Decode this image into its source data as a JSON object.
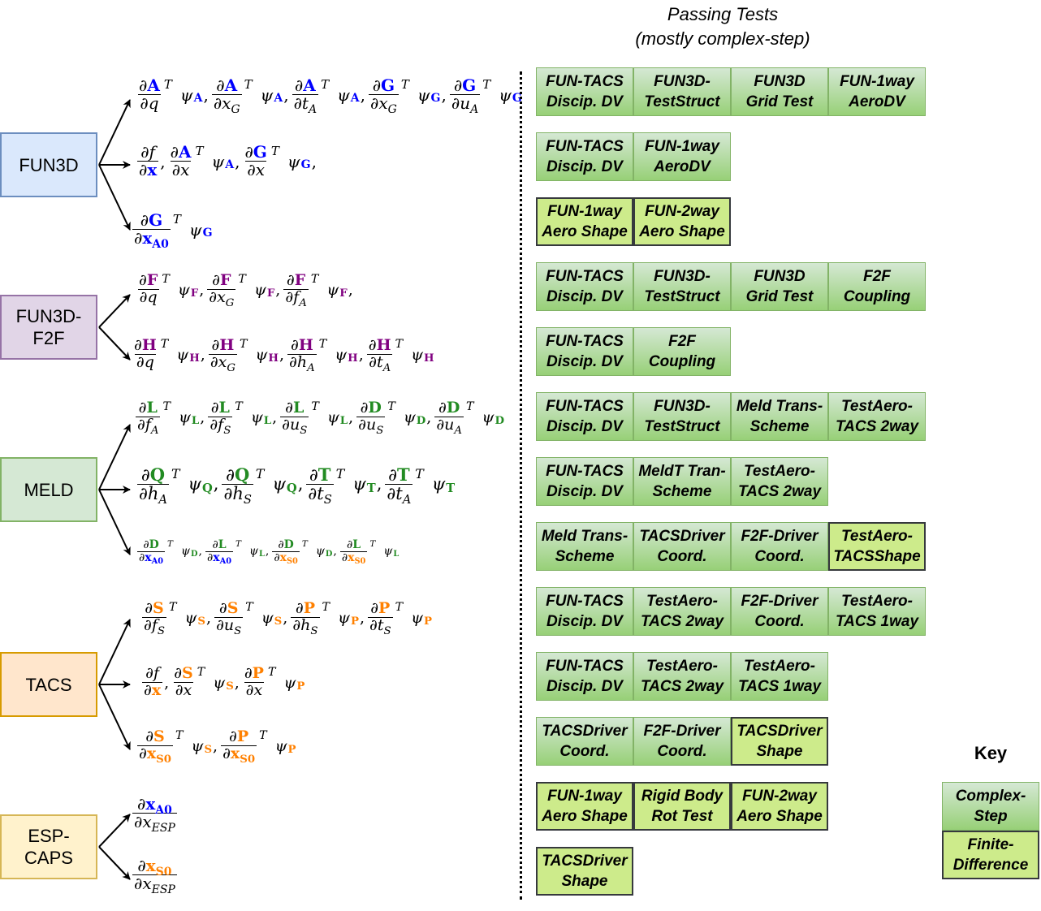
{
  "colors": {
    "blue": "#0000ff",
    "purple": "#800080",
    "green": "#228b22",
    "orange": "#ff8000"
  },
  "heading": {
    "line1": "Passing Tests",
    "line2": "(mostly complex-step)"
  },
  "modules": [
    {
      "id": "fun3d",
      "lines": [
        "FUN3D"
      ],
      "fill": "#dae8fc",
      "stroke": "#6c8ebf"
    },
    {
      "id": "fun3d-f2f",
      "lines": [
        "FUN3D-",
        "F2F"
      ],
      "fill": "#e1d5e7",
      "stroke": "#9673a6"
    },
    {
      "id": "meld",
      "lines": [
        "MELD"
      ],
      "fill": "#d5e8d4",
      "stroke": "#82b366"
    },
    {
      "id": "tacs",
      "lines": [
        "TACS"
      ],
      "fill": "#ffe6cc",
      "stroke": "#d79b00"
    },
    {
      "id": "esp-caps",
      "lines": [
        "ESP-",
        "CAPS"
      ],
      "fill": "#fff2cc",
      "stroke": "#d6b656"
    }
  ],
  "formulas": [
    {
      "terms": [
        {
          "n": "A",
          "nc": "blue",
          "d": [
            [
              "i",
              "q"
            ]
          ],
          "psi": "A",
          "pc": "blue"
        },
        {
          "n": "A",
          "nc": "blue",
          "d": [
            [
              "i",
              "x"
            ],
            [
              "s",
              "G"
            ]
          ],
          "psi": "A",
          "pc": "blue"
        },
        {
          "n": "A",
          "nc": "blue",
          "d": [
            [
              "i",
              "t"
            ],
            [
              "s",
              "A"
            ]
          ],
          "psi": "A",
          "pc": "blue"
        },
        {
          "n": "G",
          "nc": "blue",
          "d": [
            [
              "i",
              "x"
            ],
            [
              "s",
              "G"
            ]
          ],
          "psi": "G",
          "pc": "blue"
        },
        {
          "n": "G",
          "nc": "blue",
          "d": [
            [
              "i",
              "u"
            ],
            [
              "s",
              "A"
            ]
          ],
          "psi": "G",
          "pc": "blue"
        }
      ]
    },
    {
      "terms": [
        {
          "n": "f",
          "nc": "italic",
          "d": [
            [
              "b",
              "x",
              "blue"
            ]
          ],
          "plain": true
        },
        {
          "n": "A",
          "nc": "blue",
          "d": [
            [
              "i",
              "x"
            ]
          ],
          "psi": "A",
          "pc": "blue"
        },
        {
          "n": "G",
          "nc": "blue",
          "d": [
            [
              "i",
              "x"
            ]
          ],
          "psi": "G",
          "pc": "blue"
        }
      ],
      "trail": ","
    },
    {
      "terms": [
        {
          "n": "G",
          "nc": "blue",
          "d": [
            [
              "b",
              "x",
              "blue"
            ],
            [
              "bs",
              "A0",
              "blue"
            ]
          ],
          "psi": "G",
          "pc": "blue"
        }
      ]
    },
    {
      "terms": [
        {
          "n": "F",
          "nc": "purple",
          "d": [
            [
              "i",
              "q"
            ]
          ],
          "psi": "F",
          "pc": "purple"
        },
        {
          "n": "F",
          "nc": "purple",
          "d": [
            [
              "i",
              "x"
            ],
            [
              "s",
              "G"
            ]
          ],
          "psi": "F",
          "pc": "purple"
        },
        {
          "n": "F",
          "nc": "purple",
          "d": [
            [
              "i",
              "f"
            ],
            [
              "s",
              "A"
            ]
          ],
          "psi": "F",
          "pc": "purple"
        }
      ],
      "trail": ","
    },
    {
      "terms": [
        {
          "n": "H",
          "nc": "purple",
          "d": [
            [
              "i",
              "q"
            ]
          ],
          "psi": "H",
          "pc": "purple"
        },
        {
          "n": "H",
          "nc": "purple",
          "d": [
            [
              "i",
              "x"
            ],
            [
              "s",
              "G"
            ]
          ],
          "psi": "H",
          "pc": "purple"
        },
        {
          "n": "H",
          "nc": "purple",
          "d": [
            [
              "i",
              "h"
            ],
            [
              "s",
              "A"
            ]
          ],
          "psi": "H",
          "pc": "purple"
        },
        {
          "n": "H",
          "nc": "purple",
          "d": [
            [
              "i",
              "t"
            ],
            [
              "s",
              "A"
            ]
          ],
          "psi": "H",
          "pc": "purple"
        }
      ]
    },
    {
      "terms": [
        {
          "n": "L",
          "nc": "green",
          "d": [
            [
              "i",
              "f"
            ],
            [
              "s",
              "A"
            ]
          ],
          "psi": "L",
          "pc": "green"
        },
        {
          "n": "L",
          "nc": "green",
          "d": [
            [
              "i",
              "f"
            ],
            [
              "s",
              "S"
            ]
          ],
          "psi": "L",
          "pc": "green"
        },
        {
          "n": "L",
          "nc": "green",
          "d": [
            [
              "i",
              "u"
            ],
            [
              "s",
              "S"
            ]
          ],
          "psi": "L",
          "pc": "green"
        },
        {
          "n": "D",
          "nc": "green",
          "d": [
            [
              "i",
              "u"
            ],
            [
              "s",
              "S"
            ]
          ],
          "psi": "D",
          "pc": "green"
        },
        {
          "n": "D",
          "nc": "green",
          "d": [
            [
              "i",
              "u"
            ],
            [
              "s",
              "A"
            ]
          ],
          "psi": "D",
          "pc": "green"
        }
      ]
    },
    {
      "terms": [
        {
          "n": "Q",
          "nc": "green",
          "d": [
            [
              "i",
              "h"
            ],
            [
              "s",
              "A"
            ]
          ],
          "psi": "Q",
          "pc": "green"
        },
        {
          "n": "Q",
          "nc": "green",
          "d": [
            [
              "i",
              "h"
            ],
            [
              "s",
              "S"
            ]
          ],
          "psi": "Q",
          "pc": "green"
        },
        {
          "n": "T",
          "nc": "green",
          "d": [
            [
              "i",
              "t"
            ],
            [
              "s",
              "S"
            ]
          ],
          "psi": "T",
          "pc": "green"
        },
        {
          "n": "T",
          "nc": "green",
          "d": [
            [
              "i",
              "t"
            ],
            [
              "s",
              "A"
            ]
          ],
          "psi": "T",
          "pc": "green"
        }
      ]
    },
    {
      "terms": [
        {
          "n": "D",
          "nc": "green",
          "d": [
            [
              "b",
              "x",
              "blue"
            ],
            [
              "bs",
              "A0",
              "blue"
            ]
          ],
          "psi": "D",
          "pc": "green"
        },
        {
          "n": "L",
          "nc": "green",
          "d": [
            [
              "b",
              "x",
              "blue"
            ],
            [
              "bs",
              "A0",
              "blue"
            ]
          ],
          "psi": "L",
          "pc": "green"
        },
        {
          "n": "D",
          "nc": "green",
          "d": [
            [
              "b",
              "x",
              "orange"
            ],
            [
              "bs",
              "S0",
              "orange"
            ]
          ],
          "psi": "D",
          "pc": "green"
        },
        {
          "n": "L",
          "nc": "green",
          "d": [
            [
              "b",
              "x",
              "orange"
            ],
            [
              "bs",
              "S0",
              "orange"
            ]
          ],
          "psi": "L",
          "pc": "green"
        }
      ]
    },
    {
      "terms": [
        {
          "n": "S",
          "nc": "orange",
          "d": [
            [
              "i",
              "f"
            ],
            [
              "s",
              "S"
            ]
          ],
          "psi": "S",
          "pc": "orange"
        },
        {
          "n": "S",
          "nc": "orange",
          "d": [
            [
              "i",
              "u"
            ],
            [
              "s",
              "S"
            ]
          ],
          "psi": "S",
          "pc": "orange"
        },
        {
          "n": "P",
          "nc": "orange",
          "d": [
            [
              "i",
              "h"
            ],
            [
              "s",
              "S"
            ]
          ],
          "psi": "P",
          "pc": "orange"
        },
        {
          "n": "P",
          "nc": "orange",
          "d": [
            [
              "i",
              "t"
            ],
            [
              "s",
              "S"
            ]
          ],
          "psi": "P",
          "pc": "orange"
        }
      ]
    },
    {
      "terms": [
        {
          "n": "f",
          "nc": "italic",
          "d": [
            [
              "b",
              "x",
              "orange"
            ]
          ],
          "plain": true
        },
        {
          "n": "S",
          "nc": "orange",
          "d": [
            [
              "i",
              "x"
            ]
          ],
          "psi": "S",
          "pc": "orange"
        },
        {
          "n": "P",
          "nc": "orange",
          "d": [
            [
              "i",
              "x"
            ]
          ],
          "psi": "P",
          "pc": "orange"
        }
      ]
    },
    {
      "terms": [
        {
          "n": "S",
          "nc": "orange",
          "d": [
            [
              "b",
              "x",
              "orange"
            ],
            [
              "bs",
              "S0",
              "orange"
            ]
          ],
          "psi": "S",
          "pc": "orange"
        },
        {
          "n": "P",
          "nc": "orange",
          "d": [
            [
              "b",
              "x",
              "orange"
            ],
            [
              "bs",
              "S0",
              "orange"
            ]
          ],
          "psi": "P",
          "pc": "orange"
        }
      ]
    },
    {
      "terms": [
        {
          "nx": "x",
          "nxs": "A0",
          "nc": "blue",
          "d": [
            [
              "i",
              "x"
            ],
            [
              "s",
              "ESP"
            ]
          ],
          "plain": true,
          "noT": true
        }
      ]
    },
    {
      "terms": [
        {
          "nx": "x",
          "nxs": "S0",
          "nc": "orange",
          "d": [
            [
              "i",
              "x"
            ],
            [
              "s",
              "ESP"
            ]
          ],
          "plain": true,
          "noT": true
        }
      ]
    }
  ],
  "test_rows": [
    [
      [
        "FUN-TACS\nDiscip. DV",
        "cs"
      ],
      [
        "FUN3D-\nTestStruct",
        "cs"
      ],
      [
        "FUN3D\nGrid Test",
        "cs"
      ],
      [
        "FUN-1way\nAeroDV",
        "cs"
      ]
    ],
    [
      [
        "FUN-TACS\nDiscip. DV",
        "cs"
      ],
      [
        "FUN-1way\nAeroDV",
        "cs"
      ]
    ],
    [
      [
        "FUN-1way\nAero Shape",
        "fd"
      ],
      [
        "FUN-2way\nAero Shape",
        "fd"
      ]
    ],
    [
      [
        "FUN-TACS\nDiscip. DV",
        "cs"
      ],
      [
        "FUN3D-\nTestStruct",
        "cs"
      ],
      [
        "FUN3D\nGrid Test",
        "cs"
      ],
      [
        "F2F\nCoupling",
        "cs"
      ]
    ],
    [
      [
        "FUN-TACS\nDiscip. DV",
        "cs"
      ],
      [
        "F2F\nCoupling",
        "cs"
      ]
    ],
    [
      [
        "FUN-TACS\nDiscip. DV",
        "cs"
      ],
      [
        "FUN3D-\nTestStruct",
        "cs"
      ],
      [
        "Meld Trans-\nScheme",
        "cs"
      ],
      [
        "TestAero-\nTACS 2way",
        "cs"
      ]
    ],
    [
      [
        "FUN-TACS\nDiscip. DV",
        "cs"
      ],
      [
        "MeldT Tran-\nScheme",
        "cs"
      ],
      [
        "TestAero-\nTACS 2way",
        "cs"
      ]
    ],
    [
      [
        "Meld Trans-\nScheme",
        "cs"
      ],
      [
        "TACSDriver\nCoord.",
        "cs"
      ],
      [
        "F2F-Driver\nCoord.",
        "cs"
      ],
      [
        "TestAero-\nTACSShape",
        "fd"
      ]
    ],
    [
      [
        "FUN-TACS\nDiscip. DV",
        "cs"
      ],
      [
        "TestAero-\nTACS 2way",
        "cs"
      ],
      [
        "F2F-Driver\nCoord.",
        "cs"
      ],
      [
        "TestAero-\nTACS 1way",
        "cs"
      ]
    ],
    [
      [
        "FUN-TACS\nDiscip. DV",
        "cs"
      ],
      [
        "TestAero-\nTACS 2way",
        "cs"
      ],
      [
        "TestAero-\nTACS 1way",
        "cs"
      ]
    ],
    [
      [
        "TACSDriver\nCoord.",
        "cs"
      ],
      [
        "F2F-Driver\nCoord.",
        "cs"
      ],
      [
        "TACSDriver\nShape",
        "fd"
      ]
    ],
    [
      [
        "FUN-1way\nAero Shape",
        "fd"
      ],
      [
        "Rigid Body\nRot Test",
        "fd"
      ],
      [
        "FUN-2way\nAero Shape",
        "fd"
      ]
    ],
    [
      [
        "TACSDriver\nShape",
        "fd"
      ]
    ]
  ],
  "key": {
    "title": "Key",
    "complex_step": "Complex-\nStep",
    "finite_difference": "Finite-\nDifference"
  }
}
